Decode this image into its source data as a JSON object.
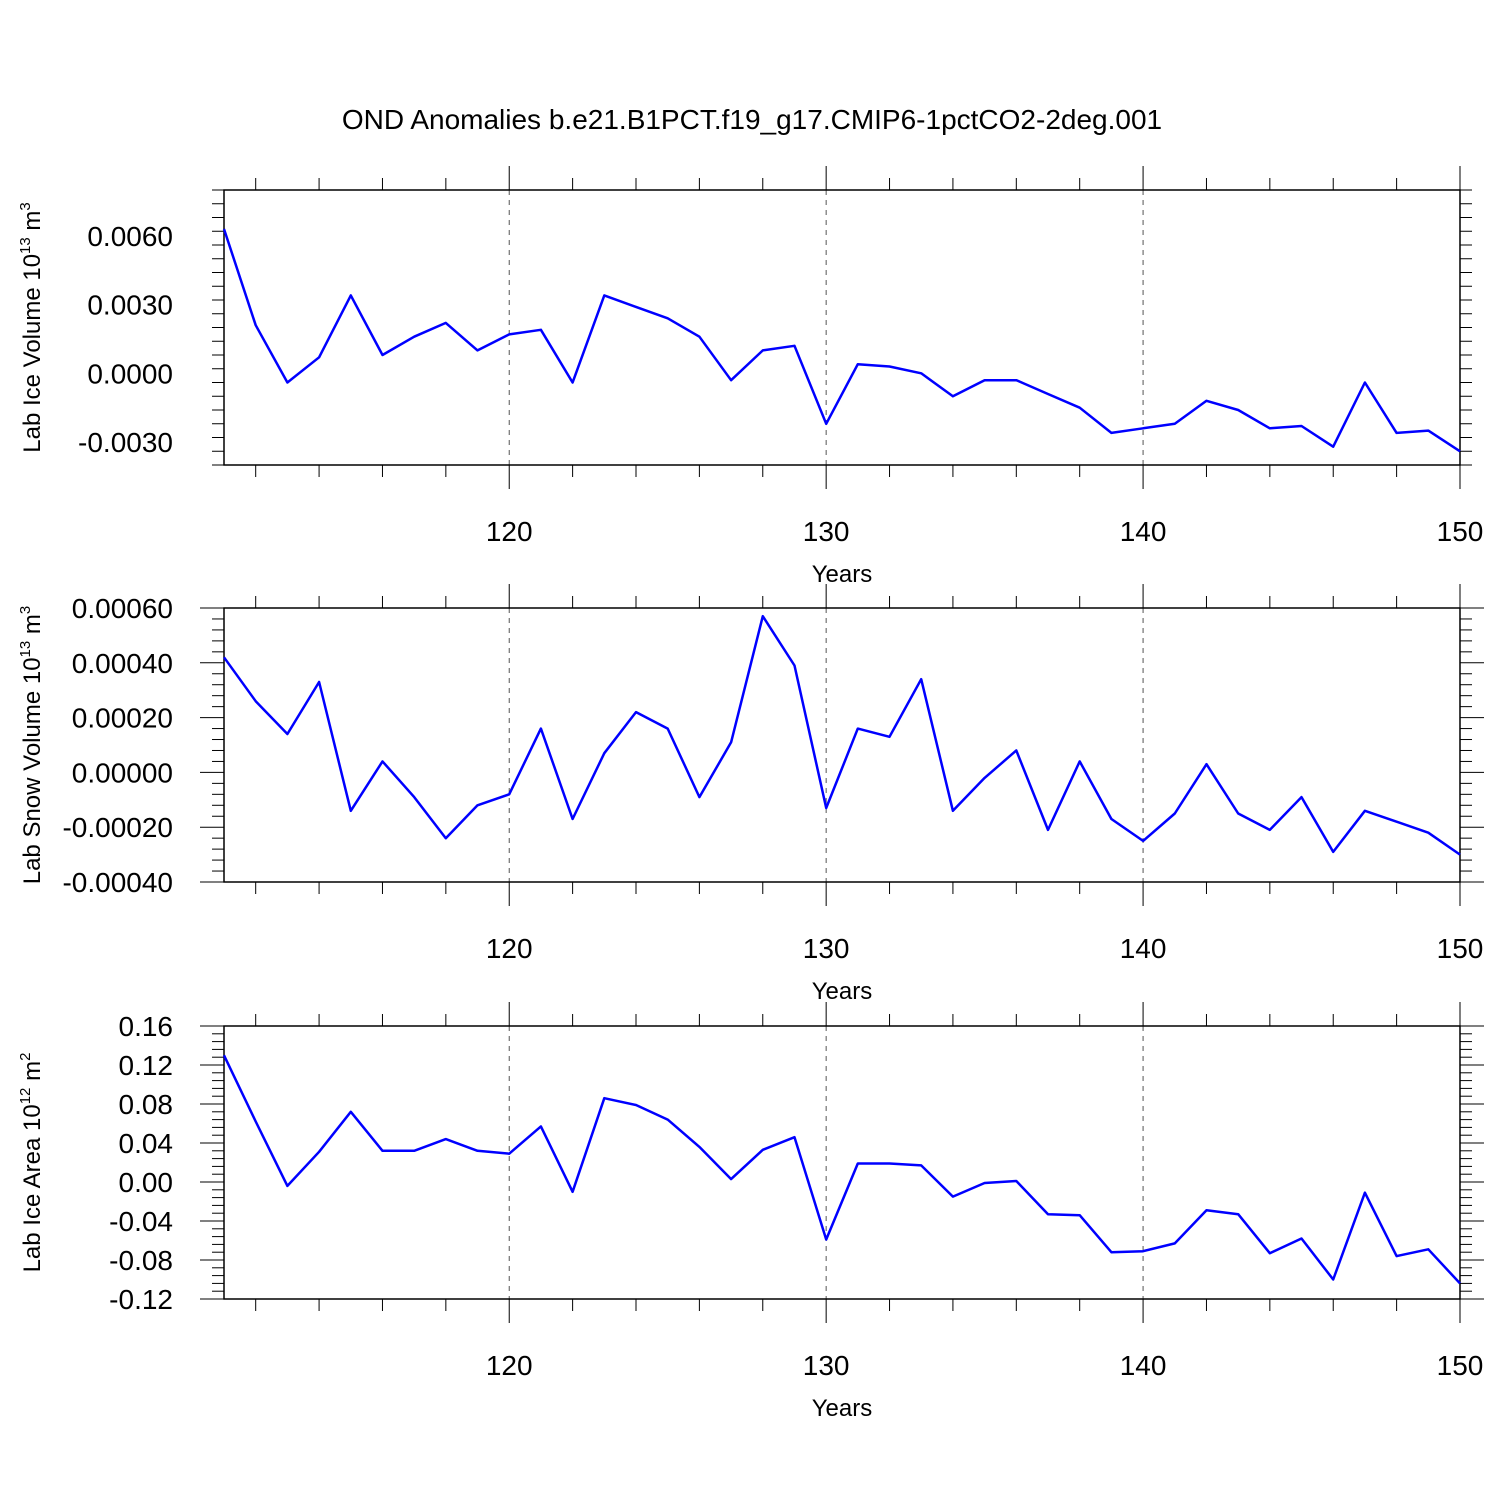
{
  "title": "OND Anomalies b.e21.B1PCT.f19_g17.CMIP6-1pctCO2-2deg.001",
  "line_color": "#0000ff",
  "chart_data": [
    {
      "type": "line",
      "xlabel": "Years",
      "ylabel": "Lab Ice Volume 10",
      "ylabel_exp": "13",
      "ylabel_unit": " m",
      "ylabel_unit_exp": "3",
      "xlim": [
        111,
        150
      ],
      "ylim": [
        -0.004,
        0.008
      ],
      "y_ticks": [
        -0.003,
        0.0,
        0.003,
        0.006
      ],
      "y_tick_labels": [
        "-0.0030",
        "0.0000",
        "0.0030",
        "0.0060"
      ],
      "x_ticks": [
        120,
        130,
        140,
        150
      ],
      "x_tick_labels": [
        "120",
        "130",
        "140",
        "150"
      ],
      "grid": "vertical-dashed",
      "x": [
        111,
        112,
        113,
        114,
        115,
        116,
        117,
        118,
        119,
        120,
        121,
        122,
        123,
        124,
        125,
        126,
        127,
        128,
        129,
        130,
        131,
        132,
        133,
        134,
        135,
        136,
        137,
        138,
        139,
        140,
        141,
        142,
        143,
        144,
        145,
        146,
        147,
        148,
        149,
        150
      ],
      "series": [
        {
          "values": [
            0.0063,
            0.0021,
            -0.0004,
            0.0007,
            0.0034,
            0.0008,
            0.0016,
            0.0022,
            0.001,
            0.0017,
            0.0019,
            -0.0004,
            0.0034,
            0.0029,
            0.0024,
            0.0016,
            -0.0003,
            0.001,
            0.0012,
            -0.0022,
            0.0004,
            0.0003,
            0.0,
            -0.001,
            -0.0003,
            -0.0003,
            -0.0009,
            -0.0015,
            -0.0026,
            -0.0024,
            -0.0022,
            -0.0012,
            -0.0016,
            -0.0024,
            -0.0023,
            -0.0032,
            -0.0004,
            -0.0026,
            -0.0025,
            -0.0034
          ]
        }
      ]
    },
    {
      "type": "line",
      "xlabel": "Years",
      "ylabel": "Lab Snow Volume 10",
      "ylabel_exp": "13",
      "ylabel_unit": " m",
      "ylabel_unit_exp": "3",
      "xlim": [
        111,
        150
      ],
      "ylim": [
        -0.0004,
        0.0006
      ],
      "y_ticks": [
        -0.0004,
        -0.0002,
        0.0,
        0.0002,
        0.0004,
        0.0006
      ],
      "y_tick_labels": [
        "-0.00040",
        "-0.00020",
        "0.00000",
        "0.00020",
        "0.00040",
        "0.00060"
      ],
      "x_ticks": [
        120,
        130,
        140,
        150
      ],
      "x_tick_labels": [
        "120",
        "130",
        "140",
        "150"
      ],
      "grid": "vertical-dashed",
      "x": [
        111,
        112,
        113,
        114,
        115,
        116,
        117,
        118,
        119,
        120,
        121,
        122,
        123,
        124,
        125,
        126,
        127,
        128,
        129,
        130,
        131,
        132,
        133,
        134,
        135,
        136,
        137,
        138,
        139,
        140,
        141,
        142,
        143,
        144,
        145,
        146,
        147,
        148,
        149,
        150
      ],
      "series": [
        {
          "values": [
            0.00042,
            0.00026,
            0.00014,
            0.00033,
            -0.00014,
            4e-05,
            -9e-05,
            -0.00024,
            -0.00012,
            -8e-05,
            0.00016,
            -0.00017,
            7e-05,
            0.00022,
            0.00016,
            -9e-05,
            0.00011,
            0.00057,
            0.00039,
            -0.00013,
            0.00016,
            0.00013,
            0.00034,
            -0.00014,
            -2e-05,
            8e-05,
            -0.00021,
            4e-05,
            -0.00017,
            -0.00025,
            -0.00015,
            3e-05,
            -0.00015,
            -0.00021,
            -9e-05,
            -0.00029,
            -0.00014,
            -0.00018,
            -0.00022,
            -0.0003
          ]
        }
      ]
    },
    {
      "type": "line",
      "xlabel": "Years",
      "ylabel": "Lab Ice Area 10",
      "ylabel_exp": "12",
      "ylabel_unit": " m",
      "ylabel_unit_exp": "2",
      "xlim": [
        111,
        150
      ],
      "ylim": [
        -0.12,
        0.16
      ],
      "y_ticks": [
        -0.12,
        -0.08,
        -0.04,
        0.0,
        0.04,
        0.08,
        0.12,
        0.16
      ],
      "y_tick_labels": [
        "-0.12",
        "-0.08",
        "-0.04",
        "0.00",
        "0.04",
        "0.08",
        "0.12",
        "0.16"
      ],
      "x_ticks": [
        120,
        130,
        140,
        150
      ],
      "x_tick_labels": [
        "120",
        "130",
        "140",
        "150"
      ],
      "grid": "vertical-dashed",
      "x": [
        111,
        112,
        113,
        114,
        115,
        116,
        117,
        118,
        119,
        120,
        121,
        122,
        123,
        124,
        125,
        126,
        127,
        128,
        129,
        130,
        131,
        132,
        133,
        134,
        135,
        136,
        137,
        138,
        139,
        140,
        141,
        142,
        143,
        144,
        145,
        146,
        147,
        148,
        149,
        150
      ],
      "series": [
        {
          "values": [
            0.13,
            0.062,
            -0.004,
            0.031,
            0.072,
            0.032,
            0.032,
            0.044,
            0.032,
            0.029,
            0.057,
            -0.01,
            0.086,
            0.079,
            0.064,
            0.036,
            0.003,
            0.033,
            0.046,
            -0.059,
            0.019,
            0.019,
            0.017,
            -0.015,
            -0.001,
            0.001,
            -0.033,
            -0.034,
            -0.072,
            -0.071,
            -0.063,
            -0.029,
            -0.033,
            -0.073,
            -0.058,
            -0.1,
            -0.011,
            -0.076,
            -0.069,
            -0.104
          ]
        }
      ]
    }
  ]
}
